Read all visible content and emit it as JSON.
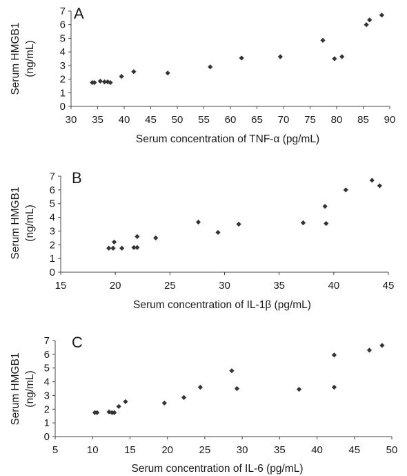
{
  "figure": {
    "panels": [
      {
        "letter": "A",
        "xlabel": "Serum concentration of TNF-α (pg/mL)",
        "ylabel_line1": "Serum HMGB1",
        "ylabel_line2": "(ng/mL)"
      },
      {
        "letter": "B",
        "xlabel": "Serum concentration of IL-1β (pg/mL)",
        "ylabel_line1": "Serum HMGB1",
        "ylabel_line2": "(ng/mL)"
      },
      {
        "letter": "C",
        "xlabel": "Serum concentration of IL-6 (pg/mL)",
        "ylabel_line1": "Serum HMGB1",
        "ylabel_line2": "(ng/mL)"
      }
    ]
  },
  "chart_data": [
    {
      "type": "scatter",
      "panel": "A",
      "title": "",
      "xlabel": "Serum concentration of TNF-α (pg/mL)",
      "ylabel": "Serum HMGB1 (ng/mL)",
      "xlim": [
        30,
        90
      ],
      "ylim": [
        0,
        7
      ],
      "xticks": [
        30,
        35,
        40,
        45,
        50,
        55,
        60,
        65,
        70,
        75,
        80,
        85,
        90
      ],
      "yticks": [
        0,
        1,
        2,
        3,
        4,
        5,
        6,
        7
      ],
      "grid": false,
      "marker": "diamond",
      "marker_color": "#333333",
      "points": [
        {
          "x": 34.0,
          "y": 1.75
        },
        {
          "x": 34.4,
          "y": 1.75
        },
        {
          "x": 35.5,
          "y": 1.85
        },
        {
          "x": 36.3,
          "y": 1.8
        },
        {
          "x": 36.9,
          "y": 1.8
        },
        {
          "x": 37.4,
          "y": 1.75
        },
        {
          "x": 39.5,
          "y": 2.2
        },
        {
          "x": 41.8,
          "y": 2.55
        },
        {
          "x": 48.2,
          "y": 2.45
        },
        {
          "x": 56.2,
          "y": 2.9
        },
        {
          "x": 62.1,
          "y": 3.55
        },
        {
          "x": 69.4,
          "y": 3.65
        },
        {
          "x": 77.4,
          "y": 4.85
        },
        {
          "x": 79.6,
          "y": 3.5
        },
        {
          "x": 81.0,
          "y": 3.65
        },
        {
          "x": 85.6,
          "y": 6.0
        },
        {
          "x": 86.2,
          "y": 6.35
        },
        {
          "x": 88.5,
          "y": 6.7
        }
      ]
    },
    {
      "type": "scatter",
      "panel": "B",
      "title": "",
      "xlabel": "Serum concentration of IL-1β (pg/mL)",
      "ylabel": "Serum HMGB1 (ng/mL)",
      "xlim": [
        15,
        45
      ],
      "ylim": [
        0,
        7
      ],
      "xticks": [
        15,
        20,
        25,
        30,
        35,
        40,
        45
      ],
      "yticks": [
        0,
        1,
        2,
        3,
        4,
        5,
        6,
        7
      ],
      "grid": false,
      "marker": "diamond",
      "marker_color": "#333333",
      "points": [
        {
          "x": 19.4,
          "y": 1.75
        },
        {
          "x": 19.8,
          "y": 1.75
        },
        {
          "x": 19.9,
          "y": 2.2
        },
        {
          "x": 20.6,
          "y": 1.75
        },
        {
          "x": 21.7,
          "y": 1.8
        },
        {
          "x": 22.0,
          "y": 1.8
        },
        {
          "x": 22.0,
          "y": 2.6
        },
        {
          "x": 23.7,
          "y": 2.5
        },
        {
          "x": 27.6,
          "y": 3.65
        },
        {
          "x": 29.4,
          "y": 2.9
        },
        {
          "x": 31.3,
          "y": 3.5
        },
        {
          "x": 37.2,
          "y": 3.6
        },
        {
          "x": 39.3,
          "y": 3.55
        },
        {
          "x": 39.2,
          "y": 4.8
        },
        {
          "x": 41.1,
          "y": 6.0
        },
        {
          "x": 43.5,
          "y": 6.7
        },
        {
          "x": 44.2,
          "y": 6.3
        }
      ]
    },
    {
      "type": "scatter",
      "panel": "C",
      "title": "",
      "xlabel": "Serum concentration of IL-6 (pg/mL)",
      "ylabel": "Serum HMGB1 (ng/mL)",
      "xlim": [
        5,
        50
      ],
      "ylim": [
        0,
        7
      ],
      "xticks": [
        5,
        10,
        15,
        20,
        25,
        30,
        35,
        40,
        45,
        50
      ],
      "yticks": [
        0,
        1,
        2,
        3,
        4,
        5,
        6,
        7
      ],
      "grid": false,
      "marker": "diamond",
      "marker_color": "#333333",
      "points": [
        {
          "x": 10.3,
          "y": 1.75
        },
        {
          "x": 10.6,
          "y": 1.75
        },
        {
          "x": 12.2,
          "y": 1.8
        },
        {
          "x": 12.6,
          "y": 1.75
        },
        {
          "x": 12.9,
          "y": 1.75
        },
        {
          "x": 13.5,
          "y": 2.2
        },
        {
          "x": 14.4,
          "y": 2.55
        },
        {
          "x": 19.6,
          "y": 2.45
        },
        {
          "x": 22.2,
          "y": 2.85
        },
        {
          "x": 24.4,
          "y": 3.6
        },
        {
          "x": 28.6,
          "y": 4.8
        },
        {
          "x": 29.3,
          "y": 3.5
        },
        {
          "x": 37.6,
          "y": 3.45
        },
        {
          "x": 42.3,
          "y": 5.95
        },
        {
          "x": 42.3,
          "y": 3.6
        },
        {
          "x": 47.0,
          "y": 6.3
        },
        {
          "x": 48.7,
          "y": 6.65
        }
      ]
    }
  ]
}
